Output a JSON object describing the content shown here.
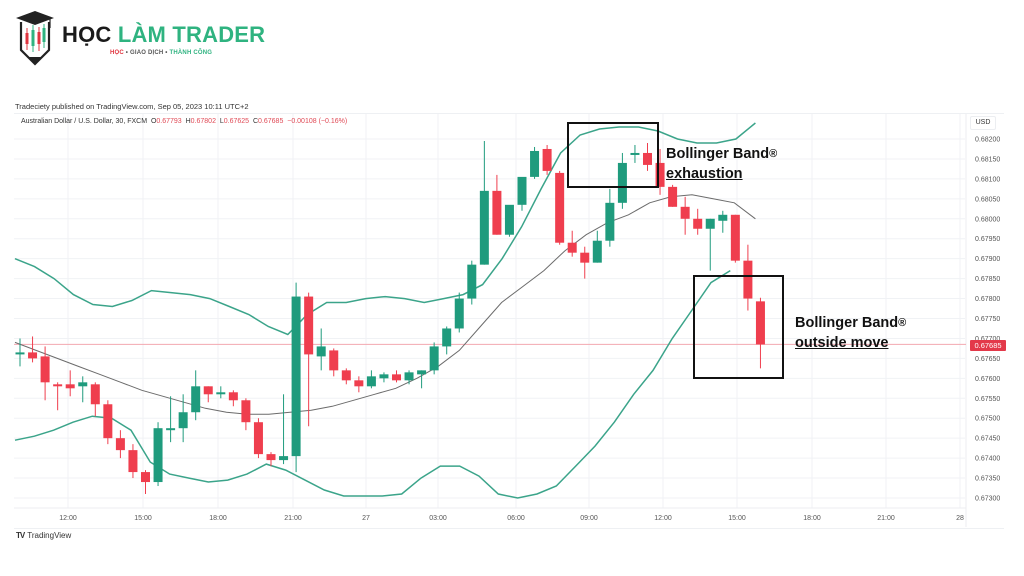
{
  "logo": {
    "title_part1": "HỌC",
    "title_part2": "LÀM TRADER",
    "tagline_part1": "HỌC",
    "tagline_sep1": " • GIAO DỊCH • ",
    "tagline_part3": "THÀNH CÔNG"
  },
  "publisher_line": "Tradeciety published on TradingView.com, Sep 05, 2023 10:11 UTC+2",
  "symbol": {
    "description": "Australian Dollar / U.S. Dollar, 30, FXCM",
    "open_label": "O",
    "open": "0.67793",
    "high_label": "H",
    "high": "0.67802",
    "low_label": "L",
    "low": "0.67625",
    "close_label": "C",
    "close": "0.67685",
    "change": "−0.00108 (−0.16%)"
  },
  "price_axis": {
    "currency": "USD",
    "current_price": "0.67685"
  },
  "annotations": [
    {
      "line1": "Bollinger Band",
      "mark": "®",
      "line2": "exhaustion"
    },
    {
      "line1": "Bollinger Band",
      "mark": "®",
      "line2": "outside move"
    }
  ],
  "footer": {
    "brand_mark": "TV",
    "brand_name": "TradingView"
  },
  "colors": {
    "up": "#1f9b7d",
    "down": "#ef3e4e",
    "band": "#3ba48a",
    "basis": "#6b6b6b",
    "price_line": "#f3a8b0",
    "grid": "#f0f2f5"
  },
  "chart_data": {
    "type": "candlestick",
    "title": "Australian Dollar / U.S. Dollar, 30, FXCM",
    "indicator": "Bollinger Bands",
    "ylabel": "USD",
    "ylim": [
      0.6727,
      0.6825
    ],
    "y_ticks": [
      "0.68200",
      "0.68150",
      "0.68100",
      "0.68050",
      "0.68000",
      "0.67950",
      "0.67900",
      "0.67850",
      "0.67800",
      "0.67750",
      "0.67700",
      "0.67650",
      "0.67600",
      "0.67550",
      "0.67500",
      "0.67450",
      "0.67400",
      "0.67350",
      "0.67300"
    ],
    "x_ticks": [
      "12:00",
      "15:00",
      "18:00",
      "21:00",
      "27",
      "03:00",
      "06:00",
      "09:00",
      "12:00",
      "15:00",
      "18:00",
      "21:00",
      "28"
    ],
    "last_price": 0.67685,
    "grid": true,
    "candles": [
      {
        "o": 0.67665,
        "h": 0.677,
        "l": 0.6763,
        "c": 0.67665
      },
      {
        "o": 0.67665,
        "h": 0.67705,
        "l": 0.6764,
        "c": 0.6765
      },
      {
        "o": 0.67655,
        "h": 0.6768,
        "l": 0.67545,
        "c": 0.6759
      },
      {
        "o": 0.67585,
        "h": 0.6759,
        "l": 0.6752,
        "c": 0.6758
      },
      {
        "o": 0.67585,
        "h": 0.6762,
        "l": 0.67555,
        "c": 0.67575
      },
      {
        "o": 0.6758,
        "h": 0.67605,
        "l": 0.6754,
        "c": 0.6759
      },
      {
        "o": 0.67585,
        "h": 0.6759,
        "l": 0.67505,
        "c": 0.67535
      },
      {
        "o": 0.67535,
        "h": 0.67545,
        "l": 0.67435,
        "c": 0.6745
      },
      {
        "o": 0.6745,
        "h": 0.6747,
        "l": 0.674,
        "c": 0.6742
      },
      {
        "o": 0.6742,
        "h": 0.67435,
        "l": 0.6735,
        "c": 0.67365
      },
      {
        "o": 0.67365,
        "h": 0.6737,
        "l": 0.6731,
        "c": 0.6734
      },
      {
        "o": 0.6734,
        "h": 0.6749,
        "l": 0.6733,
        "c": 0.67475
      },
      {
        "o": 0.67475,
        "h": 0.67555,
        "l": 0.6744,
        "c": 0.67475
      },
      {
        "o": 0.67475,
        "h": 0.6756,
        "l": 0.6744,
        "c": 0.67515
      },
      {
        "o": 0.67515,
        "h": 0.6762,
        "l": 0.67495,
        "c": 0.6758
      },
      {
        "o": 0.6758,
        "h": 0.6758,
        "l": 0.6754,
        "c": 0.6756
      },
      {
        "o": 0.6756,
        "h": 0.6758,
        "l": 0.6755,
        "c": 0.67565
      },
      {
        "o": 0.67565,
        "h": 0.6757,
        "l": 0.6753,
        "c": 0.67545
      },
      {
        "o": 0.67545,
        "h": 0.6755,
        "l": 0.6747,
        "c": 0.6749
      },
      {
        "o": 0.6749,
        "h": 0.675,
        "l": 0.674,
        "c": 0.6741
      },
      {
        "o": 0.6741,
        "h": 0.67415,
        "l": 0.6738,
        "c": 0.67395
      },
      {
        "o": 0.67395,
        "h": 0.6756,
        "l": 0.67385,
        "c": 0.67405
      },
      {
        "o": 0.67405,
        "h": 0.6784,
        "l": 0.67365,
        "c": 0.67805
      },
      {
        "o": 0.67805,
        "h": 0.67815,
        "l": 0.6748,
        "c": 0.6766
      },
      {
        "o": 0.67655,
        "h": 0.67725,
        "l": 0.6762,
        "c": 0.6768
      },
      {
        "o": 0.6767,
        "h": 0.67675,
        "l": 0.67605,
        "c": 0.6762
      },
      {
        "o": 0.6762,
        "h": 0.67625,
        "l": 0.67585,
        "c": 0.67595
      },
      {
        "o": 0.67595,
        "h": 0.67605,
        "l": 0.67565,
        "c": 0.6758
      },
      {
        "o": 0.6758,
        "h": 0.6762,
        "l": 0.67575,
        "c": 0.67605
      },
      {
        "o": 0.676,
        "h": 0.67615,
        "l": 0.6759,
        "c": 0.6761
      },
      {
        "o": 0.6761,
        "h": 0.6762,
        "l": 0.6759,
        "c": 0.67595
      },
      {
        "o": 0.67595,
        "h": 0.6762,
        "l": 0.67585,
        "c": 0.67615
      },
      {
        "o": 0.6761,
        "h": 0.6762,
        "l": 0.67575,
        "c": 0.6762
      },
      {
        "o": 0.6762,
        "h": 0.6769,
        "l": 0.6761,
        "c": 0.6768
      },
      {
        "o": 0.6768,
        "h": 0.6773,
        "l": 0.6766,
        "c": 0.67725
      },
      {
        "o": 0.67725,
        "h": 0.67815,
        "l": 0.67715,
        "c": 0.678
      },
      {
        "o": 0.678,
        "h": 0.67895,
        "l": 0.67785,
        "c": 0.67885
      },
      {
        "o": 0.67885,
        "h": 0.68195,
        "l": 0.67885,
        "c": 0.6807
      },
      {
        "o": 0.6807,
        "h": 0.6811,
        "l": 0.6796,
        "c": 0.6796
      },
      {
        "o": 0.6796,
        "h": 0.6803,
        "l": 0.67955,
        "c": 0.68035
      },
      {
        "o": 0.68035,
        "h": 0.681,
        "l": 0.6802,
        "c": 0.68105
      },
      {
        "o": 0.68105,
        "h": 0.6818,
        "l": 0.681,
        "c": 0.6817
      },
      {
        "o": 0.68175,
        "h": 0.68185,
        "l": 0.6811,
        "c": 0.6812
      },
      {
        "o": 0.68115,
        "h": 0.6812,
        "l": 0.67935,
        "c": 0.6794
      },
      {
        "o": 0.6794,
        "h": 0.6797,
        "l": 0.67905,
        "c": 0.67915
      },
      {
        "o": 0.67915,
        "h": 0.6793,
        "l": 0.6785,
        "c": 0.6789
      },
      {
        "o": 0.6789,
        "h": 0.6797,
        "l": 0.6789,
        "c": 0.67945
      },
      {
        "o": 0.67945,
        "h": 0.68075,
        "l": 0.6793,
        "c": 0.6804
      },
      {
        "o": 0.6804,
        "h": 0.68165,
        "l": 0.68025,
        "c": 0.6814
      },
      {
        "o": 0.6816,
        "h": 0.68185,
        "l": 0.6814,
        "c": 0.68165
      },
      {
        "o": 0.68165,
        "h": 0.6819,
        "l": 0.6812,
        "c": 0.68135
      },
      {
        "o": 0.6814,
        "h": 0.68175,
        "l": 0.6806,
        "c": 0.6808
      },
      {
        "o": 0.6808,
        "h": 0.68085,
        "l": 0.6803,
        "c": 0.6803
      },
      {
        "o": 0.6803,
        "h": 0.68055,
        "l": 0.6796,
        "c": 0.68
      },
      {
        "o": 0.68,
        "h": 0.68025,
        "l": 0.6796,
        "c": 0.67975
      },
      {
        "o": 0.67975,
        "h": 0.68,
        "l": 0.6787,
        "c": 0.68
      },
      {
        "o": 0.67995,
        "h": 0.6802,
        "l": 0.67965,
        "c": 0.6801
      },
      {
        "o": 0.6801,
        "h": 0.6801,
        "l": 0.6789,
        "c": 0.67895
      },
      {
        "o": 0.67895,
        "h": 0.67935,
        "l": 0.6777,
        "c": 0.678
      },
      {
        "o": 0.67793,
        "h": 0.67802,
        "l": 0.67625,
        "c": 0.67685
      }
    ],
    "upper_band": [
      0.679,
      0.6788,
      0.6785,
      0.6781,
      0.67785,
      0.6778,
      0.67795,
      0.6782,
      0.67815,
      0.6781,
      0.678,
      0.6778,
      0.6776,
      0.6773,
      0.6771,
      0.6776,
      0.6779,
      0.6779,
      0.678,
      0.67805,
      0.678,
      0.6779,
      0.678,
      0.6781,
      0.67835,
      0.679,
      0.6798,
      0.68075,
      0.68165,
      0.6821,
      0.68225,
      0.6823,
      0.6823,
      0.6822,
      0.682,
      0.6819,
      0.6819,
      0.682,
      0.6824
    ],
    "basis": [
      0.6769,
      0.6767,
      0.6765,
      0.6763,
      0.6761,
      0.6759,
      0.6757,
      0.67555,
      0.6754,
      0.67525,
      0.67515,
      0.6751,
      0.6751,
      0.67515,
      0.6752,
      0.6753,
      0.67545,
      0.6756,
      0.67575,
      0.676,
      0.6763,
      0.6767,
      0.6773,
      0.6779,
      0.6783,
      0.6787,
      0.6792,
      0.6796,
      0.6799,
      0.6801,
      0.6804,
      0.68055,
      0.6806,
      0.6805,
      0.6804,
      0.68
    ],
    "lower_band": [
      0.67445,
      0.67455,
      0.6747,
      0.6749,
      0.67505,
      0.675,
      0.6747,
      0.6739,
      0.6736,
      0.6735,
      0.6734,
      0.67345,
      0.6736,
      0.67385,
      0.6737,
      0.67345,
      0.6732,
      0.67305,
      0.67305,
      0.67305,
      0.6731,
      0.6735,
      0.6738,
      0.6738,
      0.67355,
      0.6731,
      0.673,
      0.6731,
      0.6733,
      0.6738,
      0.6743,
      0.6749,
      0.6756,
      0.6762,
      0.677,
      0.6777,
      0.6784,
      0.6787
    ]
  }
}
